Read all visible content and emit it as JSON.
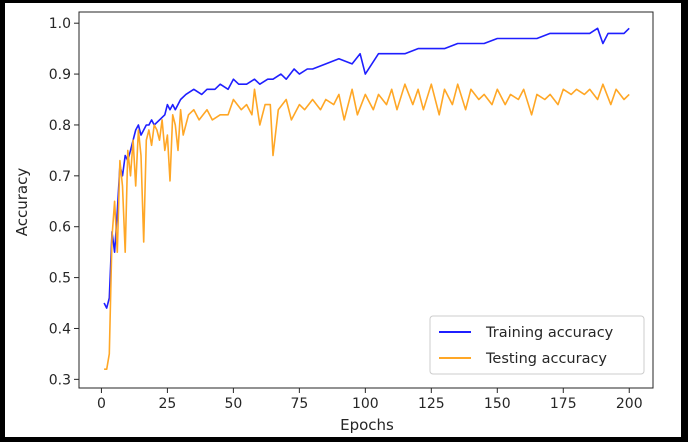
{
  "chart_data": {
    "type": "line",
    "title": "",
    "xlabel": "Epochs",
    "ylabel": "Accuracy",
    "xlim": [
      -8.5,
      209
    ],
    "ylim": [
      0.283,
      1.022
    ],
    "xticks": [
      0,
      25,
      50,
      75,
      100,
      125,
      150,
      175,
      200
    ],
    "yticks": [
      0.3,
      0.4,
      0.5,
      0.6,
      0.7,
      0.8,
      0.9,
      1.0
    ],
    "xtick_labels": [
      "0",
      "25",
      "50",
      "75",
      "100",
      "125",
      "150",
      "175",
      "200"
    ],
    "ytick_labels": [
      "0.3",
      "0.4",
      "0.5",
      "0.6",
      "0.7",
      "0.8",
      "0.9",
      "1.0"
    ],
    "grid": false,
    "legend_position": "lower-right",
    "series": [
      {
        "name": "Training accuracy",
        "color": "#1f1fff",
        "x": [
          1,
          2,
          3,
          4,
          5,
          6,
          7,
          8,
          9,
          10,
          11,
          12,
          13,
          14,
          15,
          16,
          17,
          18,
          19,
          20,
          22,
          24,
          25,
          26,
          27,
          28,
          30,
          32,
          35,
          38,
          40,
          43,
          45,
          48,
          50,
          52,
          55,
          58,
          60,
          63,
          65,
          68,
          70,
          73,
          75,
          78,
          80,
          85,
          90,
          95,
          98,
          100,
          105,
          110,
          115,
          120,
          125,
          130,
          135,
          140,
          145,
          150,
          155,
          160,
          165,
          170,
          175,
          180,
          185,
          188,
          190,
          192,
          195,
          198,
          200
        ],
        "y": [
          0.45,
          0.44,
          0.46,
          0.59,
          0.55,
          0.63,
          0.72,
          0.7,
          0.74,
          0.73,
          0.75,
          0.77,
          0.79,
          0.8,
          0.78,
          0.79,
          0.8,
          0.8,
          0.81,
          0.8,
          0.81,
          0.82,
          0.84,
          0.83,
          0.84,
          0.83,
          0.85,
          0.86,
          0.87,
          0.86,
          0.87,
          0.87,
          0.88,
          0.87,
          0.89,
          0.88,
          0.88,
          0.89,
          0.88,
          0.89,
          0.89,
          0.9,
          0.89,
          0.91,
          0.9,
          0.91,
          0.91,
          0.92,
          0.93,
          0.92,
          0.94,
          0.9,
          0.94,
          0.94,
          0.94,
          0.95,
          0.95,
          0.95,
          0.96,
          0.96,
          0.96,
          0.97,
          0.97,
          0.97,
          0.97,
          0.98,
          0.98,
          0.98,
          0.98,
          0.99,
          0.96,
          0.98,
          0.98,
          0.98,
          0.99
        ]
      },
      {
        "name": "Testing accuracy",
        "color": "#ffa726",
        "x": [
          1,
          2,
          3,
          4,
          5,
          6,
          7,
          8,
          9,
          10,
          11,
          12,
          13,
          14,
          15,
          16,
          17,
          18,
          19,
          20,
          21,
          22,
          23,
          24,
          25,
          26,
          27,
          28,
          29,
          30,
          31,
          33,
          35,
          37,
          40,
          42,
          45,
          48,
          50,
          53,
          55,
          57,
          58,
          60,
          62,
          64,
          65,
          67,
          70,
          72,
          75,
          77,
          80,
          83,
          85,
          88,
          90,
          92,
          95,
          97,
          100,
          103,
          105,
          108,
          110,
          112,
          115,
          118,
          120,
          122,
          125,
          128,
          130,
          133,
          135,
          138,
          140,
          143,
          145,
          148,
          150,
          153,
          155,
          158,
          160,
          163,
          165,
          168,
          170,
          173,
          175,
          178,
          180,
          183,
          185,
          188,
          190,
          193,
          195,
          198,
          200
        ],
        "y": [
          0.32,
          0.32,
          0.35,
          0.58,
          0.65,
          0.55,
          0.73,
          0.68,
          0.55,
          0.75,
          0.7,
          0.77,
          0.68,
          0.79,
          0.74,
          0.57,
          0.77,
          0.79,
          0.76,
          0.8,
          0.79,
          0.77,
          0.81,
          0.75,
          0.78,
          0.69,
          0.82,
          0.8,
          0.75,
          0.83,
          0.78,
          0.82,
          0.83,
          0.81,
          0.83,
          0.81,
          0.82,
          0.82,
          0.85,
          0.83,
          0.84,
          0.82,
          0.87,
          0.8,
          0.84,
          0.84,
          0.74,
          0.83,
          0.85,
          0.81,
          0.84,
          0.83,
          0.85,
          0.83,
          0.85,
          0.84,
          0.86,
          0.81,
          0.87,
          0.82,
          0.86,
          0.83,
          0.86,
          0.84,
          0.87,
          0.83,
          0.88,
          0.84,
          0.87,
          0.83,
          0.88,
          0.82,
          0.87,
          0.84,
          0.88,
          0.83,
          0.87,
          0.85,
          0.86,
          0.84,
          0.87,
          0.84,
          0.86,
          0.85,
          0.87,
          0.82,
          0.86,
          0.85,
          0.86,
          0.84,
          0.87,
          0.86,
          0.87,
          0.86,
          0.87,
          0.85,
          0.88,
          0.84,
          0.87,
          0.85,
          0.86
        ]
      }
    ]
  }
}
